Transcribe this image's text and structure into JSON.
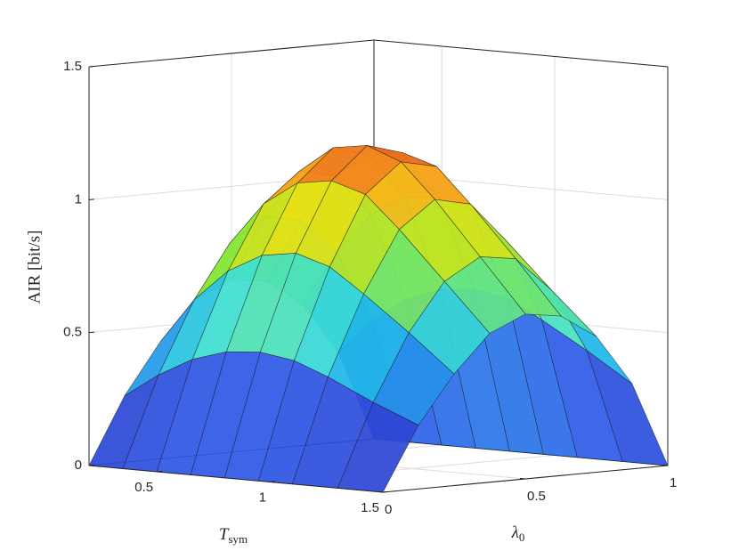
{
  "chart_data": {
    "type": "surface",
    "xlabel": {
      "text": "T",
      "sub": "sym"
    },
    "ylabel": {
      "text": "λ",
      "sub": "0"
    },
    "zlabel": "AIR [bit/s]",
    "x": [
      0.2,
      0.35,
      0.5,
      0.65,
      0.8,
      0.95,
      1.1,
      1.3,
      1.5
    ],
    "y": [
      0,
      0.125,
      0.25,
      0.375,
      0.5,
      0.625,
      0.75,
      0.875,
      1
    ],
    "z": [
      [
        0,
        0.25,
        0.44,
        0.59,
        0.65,
        0.63,
        0.53,
        0.34,
        0
      ],
      [
        0,
        0.34,
        0.61,
        0.81,
        0.9,
        0.87,
        0.74,
        0.47,
        0
      ],
      [
        0,
        0.41,
        0.73,
        0.97,
        1.08,
        1.05,
        0.89,
        0.56,
        0
      ],
      [
        0,
        0.45,
        0.8,
        1.06,
        1.18,
        1.14,
        0.97,
        0.61,
        0
      ],
      [
        0,
        0.46,
        0.82,
        1.08,
        1.2,
        1.16,
        0.98,
        0.62,
        0
      ],
      [
        0,
        0.44,
        0.78,
        1.04,
        1.15,
        1.12,
        0.94,
        0.6,
        0
      ],
      [
        0,
        0.39,
        0.69,
        0.92,
        1.02,
        0.99,
        0.84,
        0.53,
        0
      ],
      [
        0,
        0.31,
        0.56,
        0.74,
        0.82,
        0.8,
        0.67,
        0.43,
        0
      ],
      [
        0,
        0.24,
        0.42,
        0.56,
        0.62,
        0.6,
        0.51,
        0.32,
        0
      ]
    ],
    "xlim": [
      0.2,
      1.5
    ],
    "ylim": [
      0,
      1
    ],
    "zlim": [
      0,
      1.5
    ],
    "xticks": [
      0.5,
      1,
      1.5
    ],
    "yticks": [
      0,
      0.5,
      1
    ],
    "zticks": [
      0,
      0.5,
      1,
      1.5
    ],
    "grid": true,
    "colormap": "jet"
  }
}
